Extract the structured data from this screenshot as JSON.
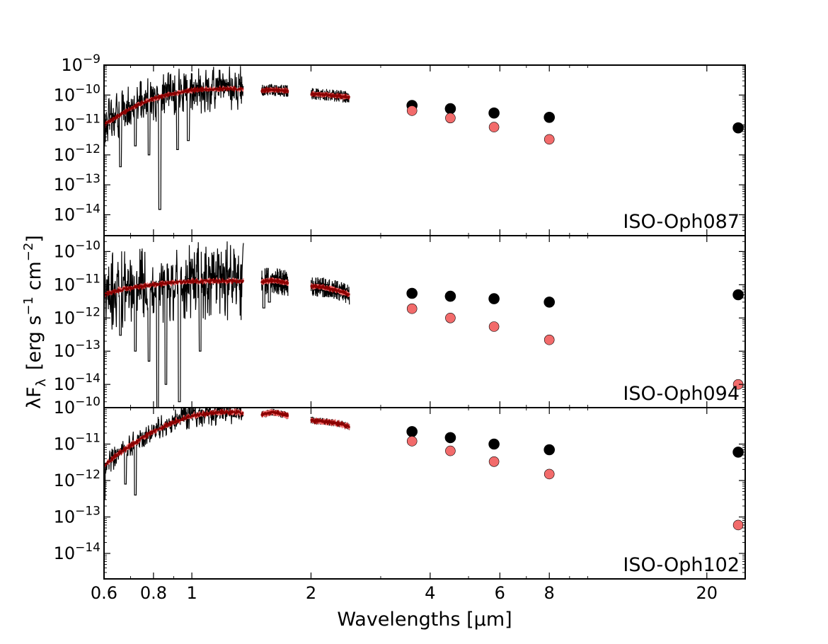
{
  "chart_data": [
    {
      "type": "scatter",
      "panel_label": "ISO-Oph087",
      "ylim": [
        2e-15,
        1e-09
      ],
      "series": [
        {
          "kind": "spectrum-observed",
          "color": "#000000",
          "segments": [
            {
              "x": [
                0.6,
                0.63,
                0.66,
                0.7,
                0.75,
                0.8,
                0.85,
                0.9,
                0.95,
                1.0,
                1.1,
                1.2,
                1.3,
                1.35
              ],
              "y": [
                1e-11,
                1.5e-11,
                2.2e-11,
                3.5e-11,
                5.5e-11,
                7.5e-11,
                9.5e-11,
                1.1e-10,
                1.3e-10,
                1.45e-10,
                1.55e-10,
                1.6e-10,
                1.6e-10,
                1.55e-10
              ],
              "noise": 1.6,
              "dips": [
                [
                  0.83,
                  1.5e-14
                ],
                [
                  0.66,
                  4e-13
                ],
                [
                  0.72,
                  2e-12
                ],
                [
                  0.78,
                  1e-12
                ],
                [
                  0.92,
                  1.5e-12
                ],
                [
                  0.98,
                  3e-12
                ]
              ]
            },
            {
              "x": [
                1.5,
                1.55,
                1.6,
                1.65,
                1.7,
                1.75
              ],
              "y": [
                1.4e-10,
                1.45e-10,
                1.5e-10,
                1.45e-10,
                1.4e-10,
                1.35e-10
              ],
              "noise": 0.4,
              "dips": []
            },
            {
              "x": [
                2.0,
                2.1,
                2.2,
                2.3,
                2.4,
                2.5
              ],
              "y": [
                1.1e-10,
                1.05e-10,
                1e-10,
                9.5e-11,
                9e-11,
                8.5e-11
              ],
              "noise": 0.4,
              "dips": []
            }
          ]
        },
        {
          "kind": "spectrum-model",
          "color": "#8b0000",
          "segments": [
            {
              "x": [
                0.6,
                0.63,
                0.66,
                0.7,
                0.75,
                0.8,
                0.85,
                0.9,
                0.95,
                1.0,
                1.1,
                1.2,
                1.3,
                1.35
              ],
              "y": [
                1e-11,
                1.5e-11,
                2.2e-11,
                3.5e-11,
                5.5e-11,
                7.5e-11,
                9.5e-11,
                1.1e-10,
                1.3e-10,
                1.45e-10,
                1.55e-10,
                1.6e-10,
                1.6e-10,
                1.55e-10
              ]
            },
            {
              "x": [
                1.5,
                1.55,
                1.6,
                1.65,
                1.7,
                1.75
              ],
              "y": [
                1.4e-10,
                1.45e-10,
                1.5e-10,
                1.45e-10,
                1.4e-10,
                1.35e-10
              ]
            },
            {
              "x": [
                2.0,
                2.1,
                2.2,
                2.3,
                2.4,
                2.5
              ],
              "y": [
                1.1e-10,
                1.05e-10,
                1e-10,
                9.5e-11,
                9e-11,
                8.5e-11
              ]
            }
          ]
        },
        {
          "kind": "photometry-observed",
          "color": "#000000",
          "x": [
            3.6,
            4.5,
            5.8,
            8.0,
            24.0
          ],
          "y": [
            4.5e-11,
            3.5e-11,
            2.5e-11,
            1.8e-11,
            8e-12
          ]
        },
        {
          "kind": "photometry-model",
          "color": "#f26b6b",
          "x": [
            3.6,
            4.5,
            5.8,
            8.0
          ],
          "y": [
            3e-11,
            1.7e-11,
            8.5e-12,
            3.3e-12
          ]
        }
      ]
    },
    {
      "type": "scatter",
      "panel_label": "ISO-Oph094",
      "ylim": [
        2e-15,
        3e-10
      ],
      "series": [
        {
          "kind": "spectrum-observed",
          "color": "#000000",
          "segments": [
            {
              "x": [
                0.6,
                0.63,
                0.66,
                0.7,
                0.75,
                0.8,
                0.85,
                0.9,
                0.95,
                1.0,
                1.1,
                1.2,
                1.3,
                1.35
              ],
              "y": [
                5e-12,
                6e-12,
                7e-12,
                8e-12,
                9e-12,
                1e-11,
                1.1e-11,
                1.15e-11,
                1.2e-11,
                1.25e-11,
                1.3e-11,
                1.3e-11,
                1.3e-11,
                1.3e-11
              ],
              "noise": 2.4,
              "dips": [
                [
                  0.82,
                  2e-15
                ],
                [
                  0.86,
                  1e-14
                ],
                [
                  0.93,
                  3e-15
                ],
                [
                  0.72,
                  1e-13
                ],
                [
                  0.78,
                  5e-14
                ],
                [
                  0.66,
                  3e-13
                ],
                [
                  1.05,
                  1e-13
                ]
              ]
            },
            {
              "x": [
                1.5,
                1.55,
                1.6,
                1.65,
                1.7,
                1.75
              ],
              "y": [
                1.2e-11,
                1.3e-11,
                1.35e-11,
                1.3e-11,
                1.2e-11,
                1.1e-11
              ],
              "noise": 0.8,
              "dips": [
                [
                  1.52,
                  2e-12
                ],
                [
                  1.57,
                  3e-12
                ]
              ]
            },
            {
              "x": [
                2.0,
                2.1,
                2.2,
                2.3,
                2.4,
                2.5
              ],
              "y": [
                9e-12,
                8.5e-12,
                8e-12,
                7e-12,
                6e-12,
                5e-12
              ],
              "noise": 0.6,
              "dips": []
            }
          ]
        },
        {
          "kind": "spectrum-model",
          "color": "#8b0000",
          "segments": [
            {
              "x": [
                0.6,
                0.63,
                0.66,
                0.7,
                0.75,
                0.8,
                0.85,
                0.9,
                0.95,
                1.0,
                1.1,
                1.2,
                1.3,
                1.35
              ],
              "y": [
                5e-12,
                6e-12,
                7e-12,
                8e-12,
                9e-12,
                1e-11,
                1.1e-11,
                1.15e-11,
                1.2e-11,
                1.25e-11,
                1.3e-11,
                1.3e-11,
                1.3e-11,
                1.3e-11
              ]
            },
            {
              "x": [
                1.5,
                1.55,
                1.6,
                1.65,
                1.7,
                1.75
              ],
              "y": [
                1.2e-11,
                1.3e-11,
                1.35e-11,
                1.3e-11,
                1.2e-11,
                1.1e-11
              ]
            },
            {
              "x": [
                2.0,
                2.1,
                2.2,
                2.3,
                2.4,
                2.5
              ],
              "y": [
                9e-12,
                8.5e-12,
                8e-12,
                7e-12,
                6e-12,
                5e-12
              ]
            }
          ]
        },
        {
          "kind": "photometry-observed",
          "color": "#000000",
          "x": [
            3.6,
            4.5,
            5.8,
            8.0,
            24.0
          ],
          "y": [
            5.5e-12,
            4.5e-12,
            3.8e-12,
            3e-12,
            5e-12
          ]
        },
        {
          "kind": "photometry-model",
          "color": "#f26b6b",
          "x": [
            3.6,
            4.5,
            5.8,
            8.0,
            24.0
          ],
          "y": [
            1.9e-12,
            1e-12,
            5.5e-13,
            2.2e-13,
            1e-14
          ]
        }
      ]
    },
    {
      "type": "scatter",
      "panel_label": "ISO-Oph102",
      "ylim": [
        2e-15,
        1e-10
      ],
      "series": [
        {
          "kind": "spectrum-observed",
          "color": "#000000",
          "segments": [
            {
              "x": [
                0.6,
                0.63,
                0.66,
                0.7,
                0.75,
                0.8,
                0.85,
                0.9,
                0.95,
                1.0,
                1.1,
                1.2,
                1.3,
                1.35
              ],
              "y": [
                2.5e-12,
                4e-12,
                6e-12,
                9e-12,
                1.5e-11,
                2.2e-11,
                3e-11,
                4e-11,
                5e-11,
                6e-11,
                7e-11,
                7.5e-11,
                7.5e-11,
                7e-11
              ],
              "noise": 0.7,
              "dips": [
                [
                  0.6,
                  3e-13
                ],
                [
                  0.68,
                  8e-13
                ],
                [
                  0.72,
                  4e-13
                ]
              ]
            },
            {
              "x": [
                1.5,
                1.55,
                1.6,
                1.65,
                1.7,
                1.75
              ],
              "y": [
                6.5e-11,
                7e-11,
                7.5e-11,
                7e-11,
                6.5e-11,
                6e-11
              ],
              "noise": 0.2,
              "dips": []
            },
            {
              "x": [
                2.0,
                2.1,
                2.2,
                2.3,
                2.4,
                2.5
              ],
              "y": [
                4.5e-11,
                4.3e-11,
                4e-11,
                3.8e-11,
                3.5e-11,
                3e-11
              ],
              "noise": 0.2,
              "dips": []
            }
          ]
        },
        {
          "kind": "spectrum-model",
          "color": "#8b0000",
          "segments": [
            {
              "x": [
                0.6,
                0.63,
                0.66,
                0.7,
                0.75,
                0.8,
                0.85,
                0.9,
                0.95,
                1.0,
                1.1,
                1.2,
                1.3,
                1.35
              ],
              "y": [
                2.5e-12,
                4e-12,
                6e-12,
                9e-12,
                1.5e-11,
                2.2e-11,
                3e-11,
                4e-11,
                5e-11,
                6e-11,
                7e-11,
                7.5e-11,
                7.5e-11,
                7e-11
              ]
            },
            {
              "x": [
                1.5,
                1.55,
                1.6,
                1.65,
                1.7,
                1.75
              ],
              "y": [
                6.5e-11,
                7e-11,
                7.5e-11,
                7e-11,
                6.5e-11,
                6e-11
              ]
            },
            {
              "x": [
                2.0,
                2.1,
                2.2,
                2.3,
                2.4,
                2.5
              ],
              "y": [
                4.5e-11,
                4.3e-11,
                4e-11,
                3.8e-11,
                3.5e-11,
                3e-11
              ]
            }
          ]
        },
        {
          "kind": "photometry-observed",
          "color": "#000000",
          "x": [
            3.6,
            4.5,
            5.8,
            8.0,
            24.0
          ],
          "y": [
            2.2e-11,
            1.5e-11,
            1e-11,
            7e-12,
            6e-12
          ]
        },
        {
          "kind": "photometry-model",
          "color": "#f26b6b",
          "x": [
            3.6,
            4.5,
            5.8,
            8.0,
            24.0
          ],
          "y": [
            1.2e-11,
            6.5e-12,
            3.3e-12,
            1.5e-12,
            6e-14
          ]
        }
      ]
    }
  ],
  "axes": {
    "xlabel": "Wavelengths [μm]",
    "ylabel_main": "λF",
    "ylabel_sub": "λ",
    "ylabel_units": "[erg s",
    "ylabel_exp1": "−1",
    "ylabel_mid": " cm",
    "ylabel_exp2": "−2",
    "ylabel_end": "]",
    "xlim": [
      0.6,
      25.0
    ],
    "x_scale": "log",
    "y_scale": "log",
    "x_ticks": [
      {
        "value": 0.6,
        "label": "0.6"
      },
      {
        "value": 0.8,
        "label": "0.8"
      },
      {
        "value": 1,
        "label": "1"
      },
      {
        "value": 2,
        "label": "2"
      },
      {
        "value": 4,
        "label": "4"
      },
      {
        "value": 6,
        "label": "6"
      },
      {
        "value": 8,
        "label": "8"
      },
      {
        "value": 20,
        "label": "20"
      }
    ],
    "y_tick_base": "10",
    "y_ticks": [
      [
        {
          "exp": -14
        },
        {
          "exp": -13
        },
        {
          "exp": -12
        },
        {
          "exp": -11
        },
        {
          "exp": -10
        },
        {
          "exp": -9
        }
      ],
      [
        {
          "exp": -14
        },
        {
          "exp": -13
        },
        {
          "exp": -12
        },
        {
          "exp": -11
        },
        {
          "exp": -10
        }
      ],
      [
        {
          "exp": -14
        },
        {
          "exp": -13
        },
        {
          "exp": -12
        },
        {
          "exp": -11
        },
        {
          "exp": -10
        }
      ]
    ]
  }
}
